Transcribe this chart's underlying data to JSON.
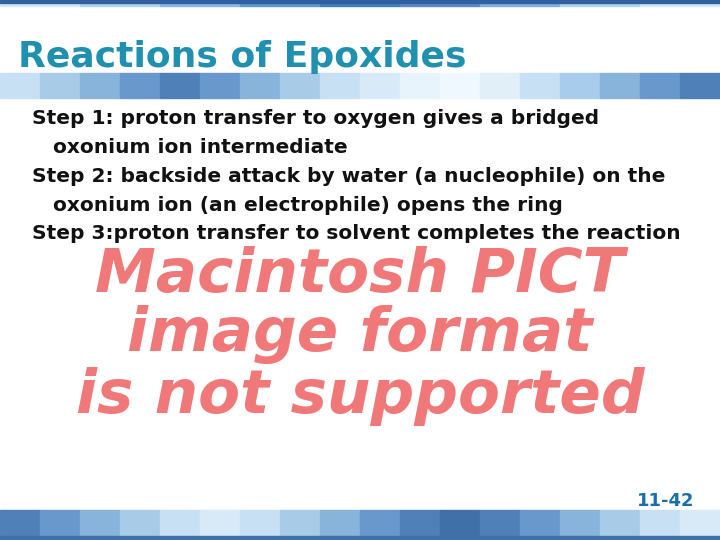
{
  "title": "Reactions of Epoxides",
  "title_color": "#2090b0",
  "title_fontsize": 26,
  "bg_color": "#ffffff",
  "step_lines": [
    "Step 1: proton transfer to oxygen gives a bridged",
    "   oxonium ion intermediate",
    "Step 2: backside attack by water (a nucleophile) on the",
    "   oxonium ion (an electrophile) opens the ring",
    "Step 3:proton transfer to solvent completes the reaction"
  ],
  "step_text_color": "#111111",
  "step_fontsize": 14.5,
  "pict_lines": [
    "Macintosh PICT",
    "image format",
    "is not supported"
  ],
  "pict_color": "#f07878",
  "pict_fontsize": 44,
  "page_number": "11-42",
  "page_number_color": "#1a6faa",
  "page_number_fontsize": 13
}
